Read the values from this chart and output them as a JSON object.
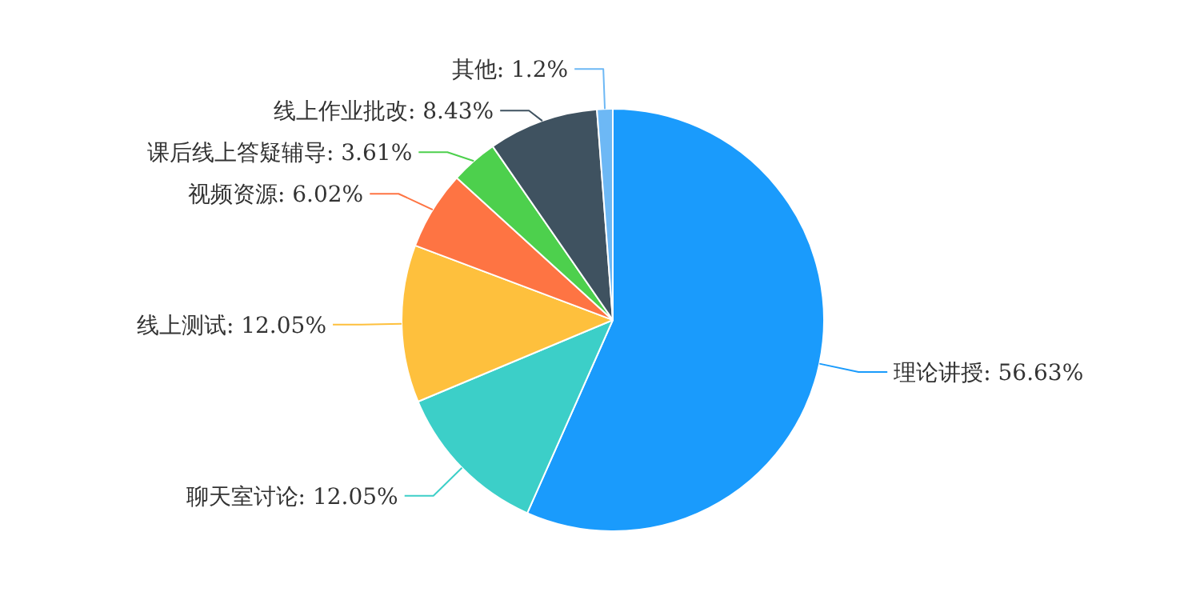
{
  "chart_data": {
    "type": "pie",
    "categories": [
      "理论讲授",
      "聊天室讨论",
      "线上测试",
      "视频资源",
      "课后线上答疑辅导",
      "线上作业批改",
      "其他"
    ],
    "values": [
      56.63,
      12.05,
      12.05,
      6.02,
      3.61,
      8.43,
      1.2
    ],
    "value_labels": [
      "56.63%",
      "12.05%",
      "12.05%",
      "6.02%",
      "3.61%",
      "8.43%",
      "1.2%"
    ],
    "colors": [
      "#1a9bfc",
      "#3ccfc8",
      "#fec03d",
      "#fe7443",
      "#4dd04d",
      "#3f5260",
      "#6db8f5"
    ]
  }
}
